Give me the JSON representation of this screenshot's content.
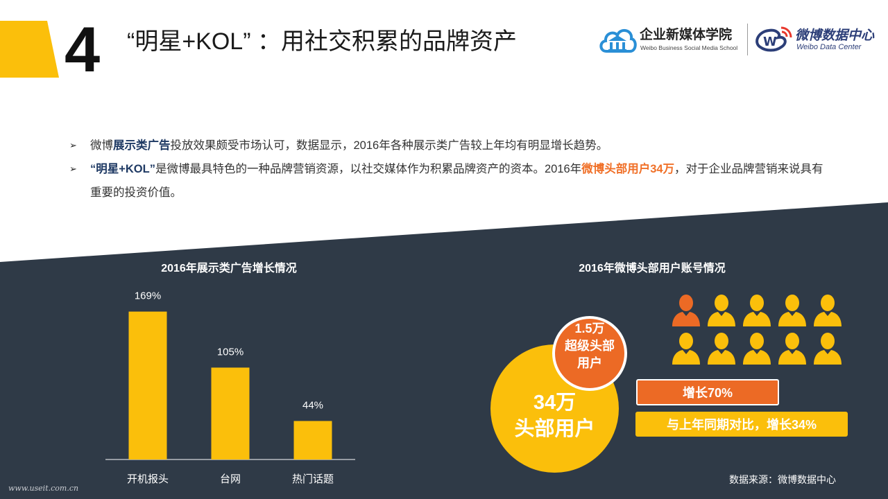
{
  "header": {
    "section_number": "4",
    "title": "“明星+KOL” ：用社交积累的品牌资产",
    "logo_school": {
      "name": "企业新媒体学院",
      "name_en": "Weibo Business Social Media School",
      "icon": "cloud-building-icon"
    },
    "logo_weibo": {
      "name": "微博数据中心",
      "name_en": "Weibo Data Center",
      "icon": "weibo-eye-icon"
    }
  },
  "bullets": [
    {
      "pre": "微博",
      "strong": "展示类广告",
      "post": "投放效果颇受市场认可，数据显示，2016年各种展示类广告较上年均有明显增长趋势。"
    },
    {
      "strong": "“明星+KOL”",
      "mid": "是微博最具特色的一种品牌营销资源，以社交媒体作为积累品牌资产的资本。2016年",
      "orange": "微博头部用户34万",
      "post": "，对于企业品牌营销来说具有重要的投资价值。"
    }
  ],
  "chart_data": {
    "type": "bar",
    "title": "2016年展示类广告增长情况",
    "categories": [
      "开机报头",
      "台网",
      "热门话题"
    ],
    "values": [
      169,
      105,
      44
    ],
    "value_labels": [
      "169%",
      "105%",
      "44%"
    ],
    "ylim": [
      0,
      175
    ],
    "grid": false,
    "legend": "none",
    "bar_color": "#fbbf0b"
  },
  "right_panel": {
    "title": "2016年微博头部用户账号情况",
    "people": {
      "total": 10,
      "highlighted": 1,
      "icon": "person-icon",
      "highlight_color": "#ec6a25",
      "color": "#fbbf0b"
    },
    "small_circle": {
      "line1": "1.5万",
      "line2": "超级头部",
      "line3": "用户"
    },
    "big_circle": {
      "line1": "34万",
      "line2": "头部用户"
    },
    "growth_super": "增长70%",
    "growth_head": "与上年同期对比，增长34%"
  },
  "source": "数据来源：微博数据中心",
  "watermark": "www.useit.com.cn",
  "colors": {
    "accent_yellow": "#fbbf0b",
    "accent_orange": "#ec6a25",
    "dark_panel": "#2f3a47",
    "title_navy": "#1f3a64"
  }
}
